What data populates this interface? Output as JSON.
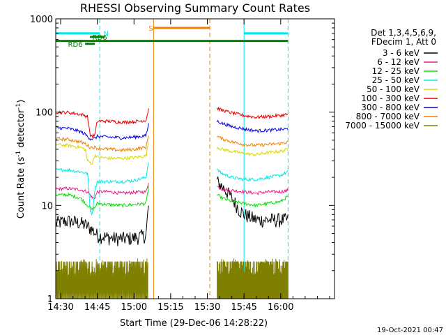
{
  "chart_data": {
    "type": "line",
    "title": "RHESSI Observing Summary Count Rates",
    "xlabel": "Start Time (29-Dec-06 14:28:22)",
    "ylabel_main": "Count Rate (s",
    "ylabel_sup1": "-1",
    "ylabel_mid": " detector",
    "ylabel_sup2": "-1",
    "ylabel_end": ")",
    "y_scale": "log",
    "ylim": [
      1,
      1000
    ],
    "xlim_min": [
      868,
      982
    ],
    "x_ticks": [
      {
        "min": 870,
        "label": "14:30"
      },
      {
        "min": 885,
        "label": "14:45"
      },
      {
        "min": 900,
        "label": "15:00"
      },
      {
        "min": 915,
        "label": "15:15"
      },
      {
        "min": 930,
        "label": "15:30"
      },
      {
        "min": 945,
        "label": "15:45"
      },
      {
        "min": 960,
        "label": "16:00"
      }
    ],
    "y_ticks": [
      {
        "value": 1,
        "label": "1"
      },
      {
        "value": 10,
        "label": "10"
      },
      {
        "value": 100,
        "label": "100"
      },
      {
        "value": 1000,
        "label": "1000"
      }
    ],
    "legend_header": [
      "Det 1,3,4,5,6,9,",
      "FDecim 1, Att 0"
    ],
    "series": [
      {
        "name": "3 - 6 keV",
        "color": "#000000",
        "seg1": [
          [
            868,
            6.5
          ],
          [
            873,
            6.8
          ],
          [
            878,
            6.5
          ],
          [
            881,
            6
          ],
          [
            883,
            5.5
          ],
          [
            885,
            4.8
          ],
          [
            890,
            4.5
          ],
          [
            895,
            4.4
          ],
          [
            900,
            4.5
          ],
          [
            905,
            4.8
          ],
          [
            906,
            10
          ]
        ],
        "seg2": [
          [
            934,
            18
          ],
          [
            936,
            16
          ],
          [
            940,
            12
          ],
          [
            943,
            9
          ],
          [
            945,
            8
          ],
          [
            950,
            7
          ],
          [
            955,
            7
          ],
          [
            960,
            7
          ],
          [
            963,
            7
          ]
        ]
      },
      {
        "name": "6 - 12 keV",
        "color": "#e81a8c",
        "seg1": [
          [
            868,
            15
          ],
          [
            873,
            15.2
          ],
          [
            878,
            14.8
          ],
          [
            881,
            14
          ],
          [
            883,
            12
          ],
          [
            884,
            12
          ],
          [
            885,
            14
          ],
          [
            890,
            14
          ],
          [
            895,
            13.5
          ],
          [
            900,
            13.8
          ],
          [
            905,
            14
          ],
          [
            906,
            18
          ]
        ],
        "seg2": [
          [
            934,
            16
          ],
          [
            936,
            15
          ],
          [
            940,
            14.5
          ],
          [
            945,
            14
          ],
          [
            950,
            13.5
          ],
          [
            955,
            14
          ],
          [
            960,
            14
          ],
          [
            963,
            14.5
          ]
        ]
      },
      {
        "name": "12 - 25 keV",
        "color": "#00e000",
        "seg1": [
          [
            868,
            13
          ],
          [
            873,
            13
          ],
          [
            878,
            12
          ],
          [
            881,
            10
          ],
          [
            883,
            9
          ],
          [
            884,
            9.5
          ],
          [
            885,
            10.5
          ],
          [
            890,
            10.2
          ],
          [
            895,
            10
          ],
          [
            900,
            10.2
          ],
          [
            905,
            10.5
          ],
          [
            906,
            16
          ]
        ],
        "seg2": [
          [
            934,
            13
          ],
          [
            936,
            12
          ],
          [
            940,
            11
          ],
          [
            945,
            10.5
          ],
          [
            950,
            10
          ],
          [
            955,
            10.5
          ],
          [
            960,
            11
          ],
          [
            963,
            12.5
          ]
        ]
      },
      {
        "name": "25 - 50 keV",
        "color": "#00e8e8",
        "seg1": [
          [
            868,
            24
          ],
          [
            873,
            24
          ],
          [
            878,
            23
          ],
          [
            881,
            22
          ],
          [
            882,
            9
          ],
          [
            883,
            8
          ],
          [
            884,
            15
          ],
          [
            885,
            18
          ],
          [
            890,
            18
          ],
          [
            895,
            18
          ],
          [
            900,
            18.5
          ],
          [
            905,
            20
          ],
          [
            906,
            30
          ]
        ],
        "seg2": [
          [
            934,
            24
          ],
          [
            936,
            22
          ],
          [
            940,
            20
          ],
          [
            945,
            19
          ],
          [
            950,
            19
          ],
          [
            955,
            20
          ],
          [
            960,
            21
          ],
          [
            963,
            23
          ]
        ]
      },
      {
        "name": "50 - 100 keV",
        "color": "#d8d800",
        "seg1": [
          [
            868,
            45
          ],
          [
            873,
            44
          ],
          [
            878,
            42
          ],
          [
            880,
            40
          ],
          [
            881,
            30
          ],
          [
            883,
            28
          ],
          [
            884,
            35
          ],
          [
            885,
            33
          ],
          [
            890,
            32
          ],
          [
            895,
            32
          ],
          [
            900,
            32.5
          ],
          [
            905,
            34
          ],
          [
            906,
            48
          ]
        ],
        "seg2": [
          [
            934,
            42
          ],
          [
            936,
            40
          ],
          [
            940,
            38
          ],
          [
            945,
            36
          ],
          [
            950,
            35
          ],
          [
            955,
            37
          ],
          [
            960,
            38
          ],
          [
            963,
            40
          ]
        ]
      },
      {
        "name": "100 - 300 keV",
        "color": "#e80000",
        "seg1": [
          [
            868,
            100
          ],
          [
            873,
            99
          ],
          [
            878,
            95
          ],
          [
            880,
            92
          ],
          [
            881,
            90
          ],
          [
            882,
            56
          ],
          [
            884,
            56
          ],
          [
            885,
            80
          ],
          [
            890,
            80
          ],
          [
            895,
            78
          ],
          [
            900,
            79
          ],
          [
            905,
            82
          ],
          [
            906,
            110
          ]
        ],
        "seg2": [
          [
            934,
            110
          ],
          [
            936,
            105
          ],
          [
            940,
            98
          ],
          [
            945,
            92
          ],
          [
            950,
            88
          ],
          [
            955,
            90
          ],
          [
            960,
            92
          ],
          [
            963,
            95
          ]
        ]
      },
      {
        "name": "300 - 800 keV",
        "color": "#0000e8",
        "seg1": [
          [
            868,
            68
          ],
          [
            873,
            67
          ],
          [
            878,
            62
          ],
          [
            880,
            58
          ],
          [
            882,
            52
          ],
          [
            884,
            52
          ],
          [
            885,
            55
          ],
          [
            890,
            54
          ],
          [
            895,
            53
          ],
          [
            900,
            54
          ],
          [
            905,
            56
          ],
          [
            906,
            75
          ]
        ],
        "seg2": [
          [
            934,
            80
          ],
          [
            936,
            76
          ],
          [
            940,
            70
          ],
          [
            945,
            66
          ],
          [
            950,
            63
          ],
          [
            955,
            64
          ],
          [
            960,
            65
          ],
          [
            963,
            66
          ]
        ]
      },
      {
        "name": "800 - 7000 keV",
        "color": "#f08000",
        "seg1": [
          [
            868,
            52
          ],
          [
            873,
            51
          ],
          [
            878,
            48
          ],
          [
            880,
            46
          ],
          [
            882,
            42
          ],
          [
            884,
            42
          ],
          [
            885,
            41
          ],
          [
            890,
            40
          ],
          [
            895,
            39
          ],
          [
            900,
            40
          ],
          [
            905,
            42
          ],
          [
            906,
            58
          ]
        ],
        "seg2": [
          [
            934,
            55
          ],
          [
            936,
            52
          ],
          [
            940,
            48
          ],
          [
            945,
            45
          ],
          [
            950,
            44
          ],
          [
            955,
            45
          ],
          [
            960,
            46
          ],
          [
            963,
            48
          ]
        ]
      },
      {
        "name": "7000 - 15000 keV",
        "color": "#808000",
        "seg1": [
          [
            868,
            2.5
          ],
          [
            906,
            2.5
          ]
        ],
        "seg2": [
          [
            934,
            2.5
          ],
          [
            963,
            2.5
          ]
        ]
      }
    ],
    "bars": [
      {
        "label": "N",
        "color": "#00e8e8",
        "y": 700,
        "x1": 868,
        "x2": 886,
        "label_min": 887.5
      },
      {
        "label": "N",
        "color": "#00e8e8",
        "y": 700,
        "x1": 945,
        "x2": 963,
        "label_min": null
      },
      {
        "label": "S",
        "color": "#f08000",
        "y": 800,
        "x1": 908,
        "x2": 931,
        "label_min": 906
      },
      {
        "label": "RD6",
        "color": "#008000",
        "y": 580,
        "x1": 868,
        "x2": 963,
        "label_min": null
      },
      {
        "label": "RD6",
        "color": "#008000",
        "y": 540,
        "x1": 880,
        "x2": 884,
        "label_min": 873
      },
      {
        "label": "RD6",
        "color": "#008000",
        "y": 640,
        "x1": 882,
        "x2": 888,
        "label_min": 883
      }
    ],
    "vlines": [
      {
        "min": 868,
        "color": "#00e8e8",
        "dash": false
      },
      {
        "min": 886,
        "color": "#00e8e8",
        "dash": true
      },
      {
        "min": 908,
        "color": "#f08000",
        "dash": false
      },
      {
        "min": 931,
        "color": "#f08000",
        "dash": true
      },
      {
        "min": 945,
        "color": "#00e8e8",
        "dash": false
      },
      {
        "min": 963,
        "color": "#00e8e8",
        "dash": true
      }
    ],
    "timestamp": "19-Oct-2021 00:47"
  }
}
